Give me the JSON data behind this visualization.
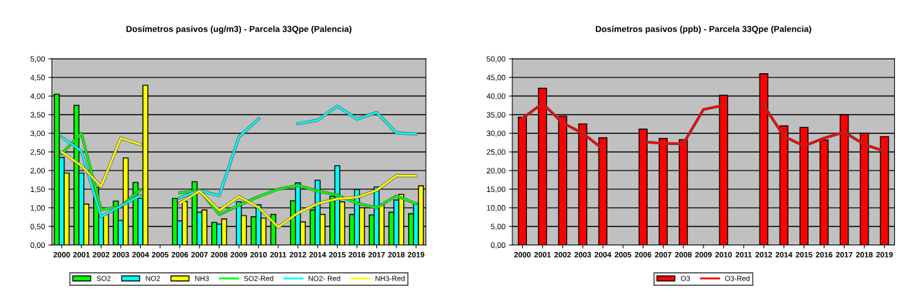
{
  "chart_data": [
    {
      "type": "bar",
      "title": "Dosímetros pasivos (ug/m3) - Parcela 33Qpe (Palencia)",
      "categories": [
        "2000",
        "2001",
        "2002",
        "2003",
        "2004",
        "2005",
        "2006",
        "2007",
        "2008",
        "2009",
        "2010",
        "2011",
        "2012",
        "2014",
        "2015",
        "2016",
        "2017",
        "2018",
        "2019"
      ],
      "series": [
        {
          "name": "SO2",
          "color": "#00ff00",
          "values": [
            4.05,
            3.75,
            1.55,
            1.18,
            1.68,
            null,
            1.25,
            1.7,
            0.61,
            null,
            0.76,
            0.82,
            1.19,
            0.94,
            1.31,
            0.82,
            0.81,
            0.88,
            0.84
          ]
        },
        {
          "name": "NO2",
          "color": "#00ffff",
          "values": [
            2.35,
            1.93,
            0.78,
            0.66,
            1.25,
            null,
            0.65,
            0.88,
            0.56,
            1.16,
            1.08,
            null,
            1.67,
            1.74,
            2.13,
            1.49,
            1.56,
            1.21,
            1.12
          ]
        },
        {
          "name": "NH3",
          "color": "#ffff00",
          "values": [
            1.93,
            1.1,
            0.82,
            2.34,
            4.29,
            null,
            1.17,
            0.94,
            0.7,
            0.79,
            0.72,
            null,
            0.62,
            0.82,
            1.16,
            1.0,
            1.08,
            1.36,
            1.59
          ]
        },
        {
          "name": "SO2-Red",
          "type": "line",
          "color": "#00ff00",
          "values": [
            2.45,
            3.0,
            0.95,
            1.03,
            1.48,
            null,
            1.4,
            1.47,
            0.82,
            1.07,
            1.3,
            1.5,
            1.6,
            1.45,
            1.34,
            1.12,
            1.0,
            1.32,
            1.11
          ]
        },
        {
          "name": "NO2- Red",
          "type": "line",
          "color": "#00ffff",
          "values": [
            2.9,
            2.52,
            0.76,
            1.05,
            1.33,
            null,
            1.27,
            1.47,
            1.32,
            2.9,
            3.39,
            null,
            3.26,
            3.35,
            3.73,
            3.38,
            3.56,
            3.01,
            2.98
          ]
        },
        {
          "name": "NH3-Red",
          "type": "line",
          "color": "#ffff00",
          "values": [
            2.5,
            2.13,
            1.57,
            2.87,
            2.7,
            null,
            1.12,
            1.45,
            0.93,
            1.3,
            1.01,
            0.48,
            0.86,
            1.11,
            1.24,
            1.28,
            1.47,
            1.86,
            1.86
          ]
        }
      ],
      "ylim": [
        0,
        5
      ],
      "yticks": [
        {
          "value": 0,
          "label": "0,00"
        },
        {
          "value": 0.5,
          "label": "0,50"
        },
        {
          "value": 1,
          "label": "1,00"
        },
        {
          "value": 1.5,
          "label": "1,50"
        },
        {
          "value": 2,
          "label": "2,00"
        },
        {
          "value": 2.5,
          "label": "2,50"
        },
        {
          "value": 3,
          "label": "3,00"
        },
        {
          "value": 3.5,
          "label": "3,50"
        },
        {
          "value": 4,
          "label": "4,00"
        },
        {
          "value": 4.5,
          "label": "4,50"
        },
        {
          "value": 5,
          "label": "5,00"
        }
      ],
      "grid": "y",
      "legend": "bottom"
    },
    {
      "type": "bar",
      "title": "Dosímetros pasivos (ppb) - Parcela 33Qpe (Palencia)",
      "categories": [
        "2000",
        "2001",
        "2002",
        "2003",
        "2004",
        "2005",
        "2006",
        "2007",
        "2008",
        "2009",
        "2010",
        "2011",
        "2012",
        "2014",
        "2015",
        "2016",
        "2017",
        "2018",
        "2019"
      ],
      "series": [
        {
          "name": "O3",
          "color": "#ff0000",
          "values": [
            34.3,
            42.1,
            34.6,
            32.5,
            28.8,
            null,
            31.1,
            28.6,
            28.3,
            null,
            40.2,
            null,
            46.0,
            32.0,
            31.6,
            28.2,
            35.0,
            30.0,
            29.1
          ]
        },
        {
          "name": "O3-Red",
          "type": "line",
          "color": "#ff0000",
          "values": [
            34.0,
            38.0,
            32.8,
            30.0,
            25.8,
            null,
            27.7,
            27.3,
            27.2,
            36.4,
            37.5,
            null,
            37.5,
            29.2,
            26.6,
            28.7,
            30.3,
            27.0,
            25.2
          ]
        }
      ],
      "ylim": [
        0,
        50
      ],
      "yticks": [
        {
          "value": 0,
          "label": "0,00"
        },
        {
          "value": 5,
          "label": "5,00"
        },
        {
          "value": 10,
          "label": "10,00"
        },
        {
          "value": 15,
          "label": "15,00"
        },
        {
          "value": 20,
          "label": "20,00"
        },
        {
          "value": 25,
          "label": "25,00"
        },
        {
          "value": 30,
          "label": "30,00"
        },
        {
          "value": 35,
          "label": "35,00"
        },
        {
          "value": 40,
          "label": "40,00"
        },
        {
          "value": 45,
          "label": "45,00"
        },
        {
          "value": 50,
          "label": "50,00"
        }
      ],
      "grid": "y",
      "legend": "bottom"
    }
  ]
}
